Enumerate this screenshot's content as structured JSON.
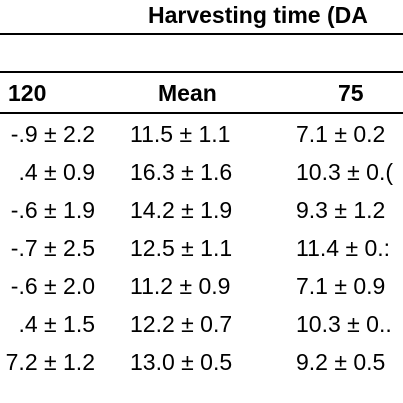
{
  "table": {
    "group_header": "Harvesting time (DA",
    "columns": [
      "120",
      "Mean",
      "75"
    ],
    "rows": [
      [
        "-.9 ± 2.2",
        "11.5 ± 1.1",
        "7.1 ± 0.2"
      ],
      [
        ".4 ± 0.9",
        "16.3 ± 1.6",
        "10.3 ± 0.("
      ],
      [
        "-.6 ± 1.9",
        "14.2 ± 1.9",
        "9.3 ± 1.2"
      ],
      [
        "-.7 ± 2.5",
        "12.5 ± 1.1",
        "11.4 ± 0.:"
      ],
      [
        "-.6 ± 2.0",
        "11.2 ± 0.9",
        "7.1 ± 0.9"
      ],
      [
        ".4 ± 1.5",
        "12.2 ± 0.7",
        "10.3 ± 0.."
      ],
      [
        "7.2 ± 1.2",
        "13.0 ± 0.5",
        "9.2 ± 0.5"
      ]
    ]
  }
}
